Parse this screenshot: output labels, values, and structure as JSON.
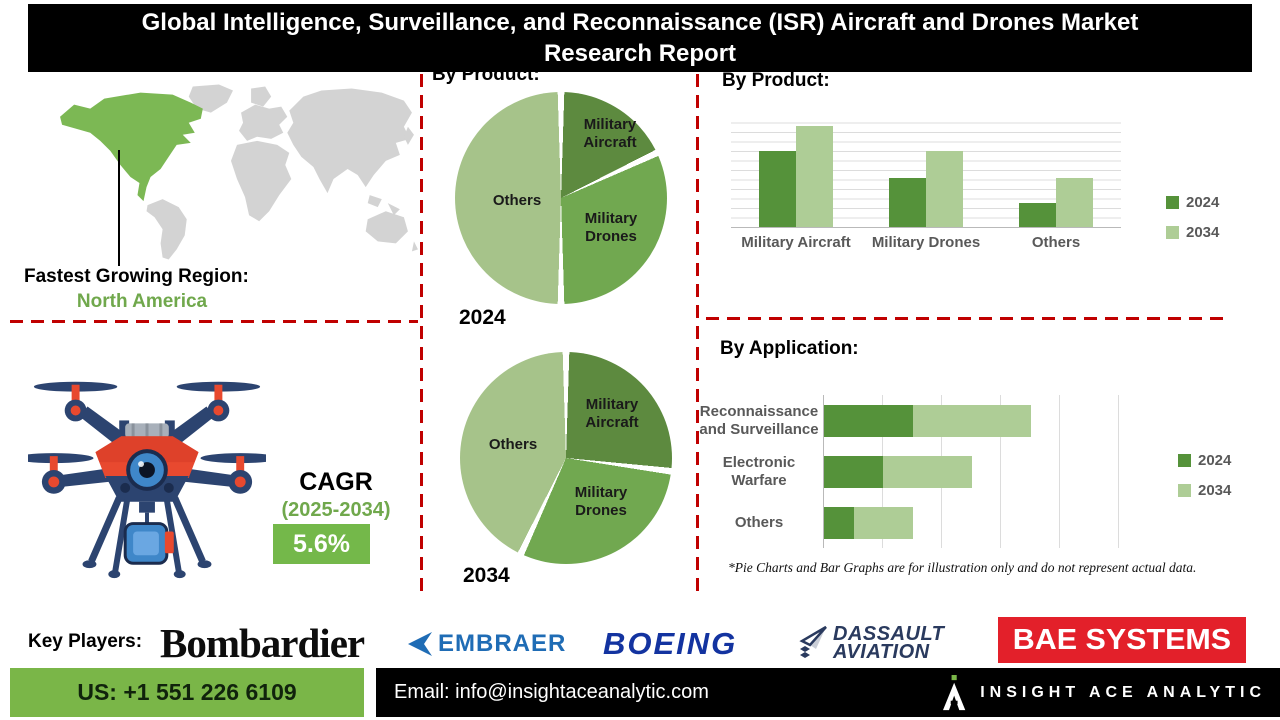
{
  "header": {
    "title_line1": "Global Intelligence, Surveillance, and Reconnaissance (ISR) Aircraft and Drones Market",
    "title_line2": "Research Report"
  },
  "map_section": {
    "region_label": "Fastest Growing Region:",
    "region_value": "North America"
  },
  "cagr": {
    "label": "CAGR",
    "period": "(2025-2034)",
    "value": "5.6%"
  },
  "pies_section": {
    "title": "By Product:"
  },
  "bars_section": {
    "title": "By Product:"
  },
  "application_section": {
    "title": "By Application:",
    "footnote": "*Pie Charts and Bar Graphs are for illustration only and do not represent actual data."
  },
  "key_players": {
    "label": "Key Players:",
    "bombardier": "Bombardier",
    "embraer": "EMBRAER",
    "boeing": "BOEING",
    "dassault_line1": "DASSAULT",
    "dassault_line2": "AVIATION",
    "bae": "BAE SYSTEMS"
  },
  "footer": {
    "phone": "US: +1 551 226 6109",
    "email": "Email: info@insightaceanalytic.com",
    "brand": "INSIGHT ACE ANALYTIC"
  },
  "colors": {
    "pie_dark_green": "#5d8a3f",
    "pie_mid_green": "#71a850",
    "pie_light_green": "#a6c38a",
    "series_2024": "#55923a",
    "series_2034": "#aecd96",
    "map_highlight": "#7cb854",
    "map_land": "#d3d3d3",
    "divider_red": "#c00000",
    "footer_green": "#7ab648",
    "bae_red": "#e3202a"
  },
  "chart_data": [
    {
      "type": "pie",
      "year": "2024",
      "title": "By Product:",
      "labels": [
        "Military Aircraft",
        "Military Drones",
        "Others"
      ],
      "values": [
        18,
        32,
        50
      ],
      "colors": [
        "#5d8a3f",
        "#71a850",
        "#a6c38a"
      ],
      "note": "illustrative percentages estimated from slice angles"
    },
    {
      "type": "pie",
      "year": "2034",
      "title": "By Product:",
      "labels": [
        "Military Aircraft",
        "Military Drones",
        "Others"
      ],
      "values": [
        27,
        30,
        43
      ],
      "colors": [
        "#5d8a3f",
        "#71a850",
        "#a6c38a"
      ],
      "note": "illustrative percentages estimated from slice angles"
    },
    {
      "type": "bar",
      "title": "By Product:",
      "categories": [
        "Military Aircraft",
        "Military Drones",
        "Others"
      ],
      "series": [
        {
          "name": "2024",
          "values": [
            80,
            52,
            25
          ],
          "color": "#55923a"
        },
        {
          "name": "2034",
          "values": [
            106,
            80,
            52
          ],
          "color": "#aecd96"
        }
      ],
      "ylim": [
        0,
        120
      ],
      "grid": "horizontal",
      "legend_position": "right",
      "note": "illustrative relative heights"
    },
    {
      "type": "stacked-hbar",
      "title": "By Application:",
      "categories": [
        "Reconnaissance and Surveillance",
        "Electronic Warfare",
        "Others"
      ],
      "series": [
        {
          "name": "2024",
          "values": [
            30,
            20,
            10
          ],
          "color": "#55923a"
        },
        {
          "name": "2034",
          "values": [
            40,
            30,
            20
          ],
          "color": "#aecd96"
        }
      ],
      "xlim": [
        0,
        100
      ],
      "grid": "vertical",
      "legend_position": "right",
      "note": "illustrative relative widths"
    }
  ]
}
